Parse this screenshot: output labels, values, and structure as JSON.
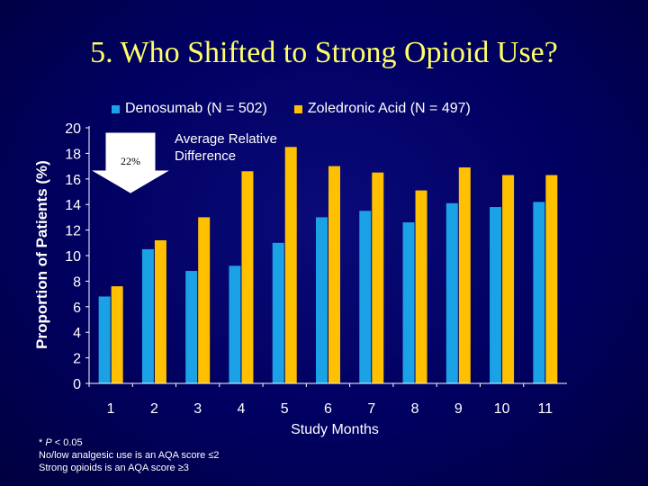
{
  "slide": {
    "title": "5. Who Shifted to Strong Opioid Use?"
  },
  "annotation": {
    "arrow_value": "22%",
    "text_line1": "Average Relative",
    "text_line2": "Difference"
  },
  "footnotes": {
    "line1_prefix": "* ",
    "line1_p": "P",
    "line1_rest": " < 0.05",
    "line2": "No/low analgesic use is an AQA score ≤2",
    "line3": "Strong opioids is an AQA score ≥3"
  },
  "chart_data": {
    "type": "bar",
    "title": "",
    "xlabel": "Study Months",
    "ylabel": "Proportion of Patients (%)",
    "categories": [
      "1",
      "2",
      "3",
      "4",
      "5",
      "6",
      "7",
      "8",
      "9",
      "10",
      "11"
    ],
    "ylim": [
      0,
      20
    ],
    "yticks": [
      "0",
      "2",
      "4",
      "6",
      "8",
      "10",
      "12",
      "14",
      "16",
      "18",
      "20"
    ],
    "legend_position": "top",
    "grid": false,
    "series": [
      {
        "name": "Denosumab (N = 502)",
        "color": "#1ba1e6",
        "values": [
          6.8,
          10.5,
          8.8,
          9.2,
          11.0,
          13.0,
          13.5,
          12.6,
          14.1,
          13.8,
          14.2
        ]
      },
      {
        "name": "Zoledronic Acid (N = 497)",
        "color": "#ffc000",
        "values": [
          7.6,
          11.2,
          13.0,
          16.6,
          18.5,
          17.0,
          16.5,
          15.1,
          16.9,
          16.3,
          16.3
        ]
      }
    ]
  }
}
